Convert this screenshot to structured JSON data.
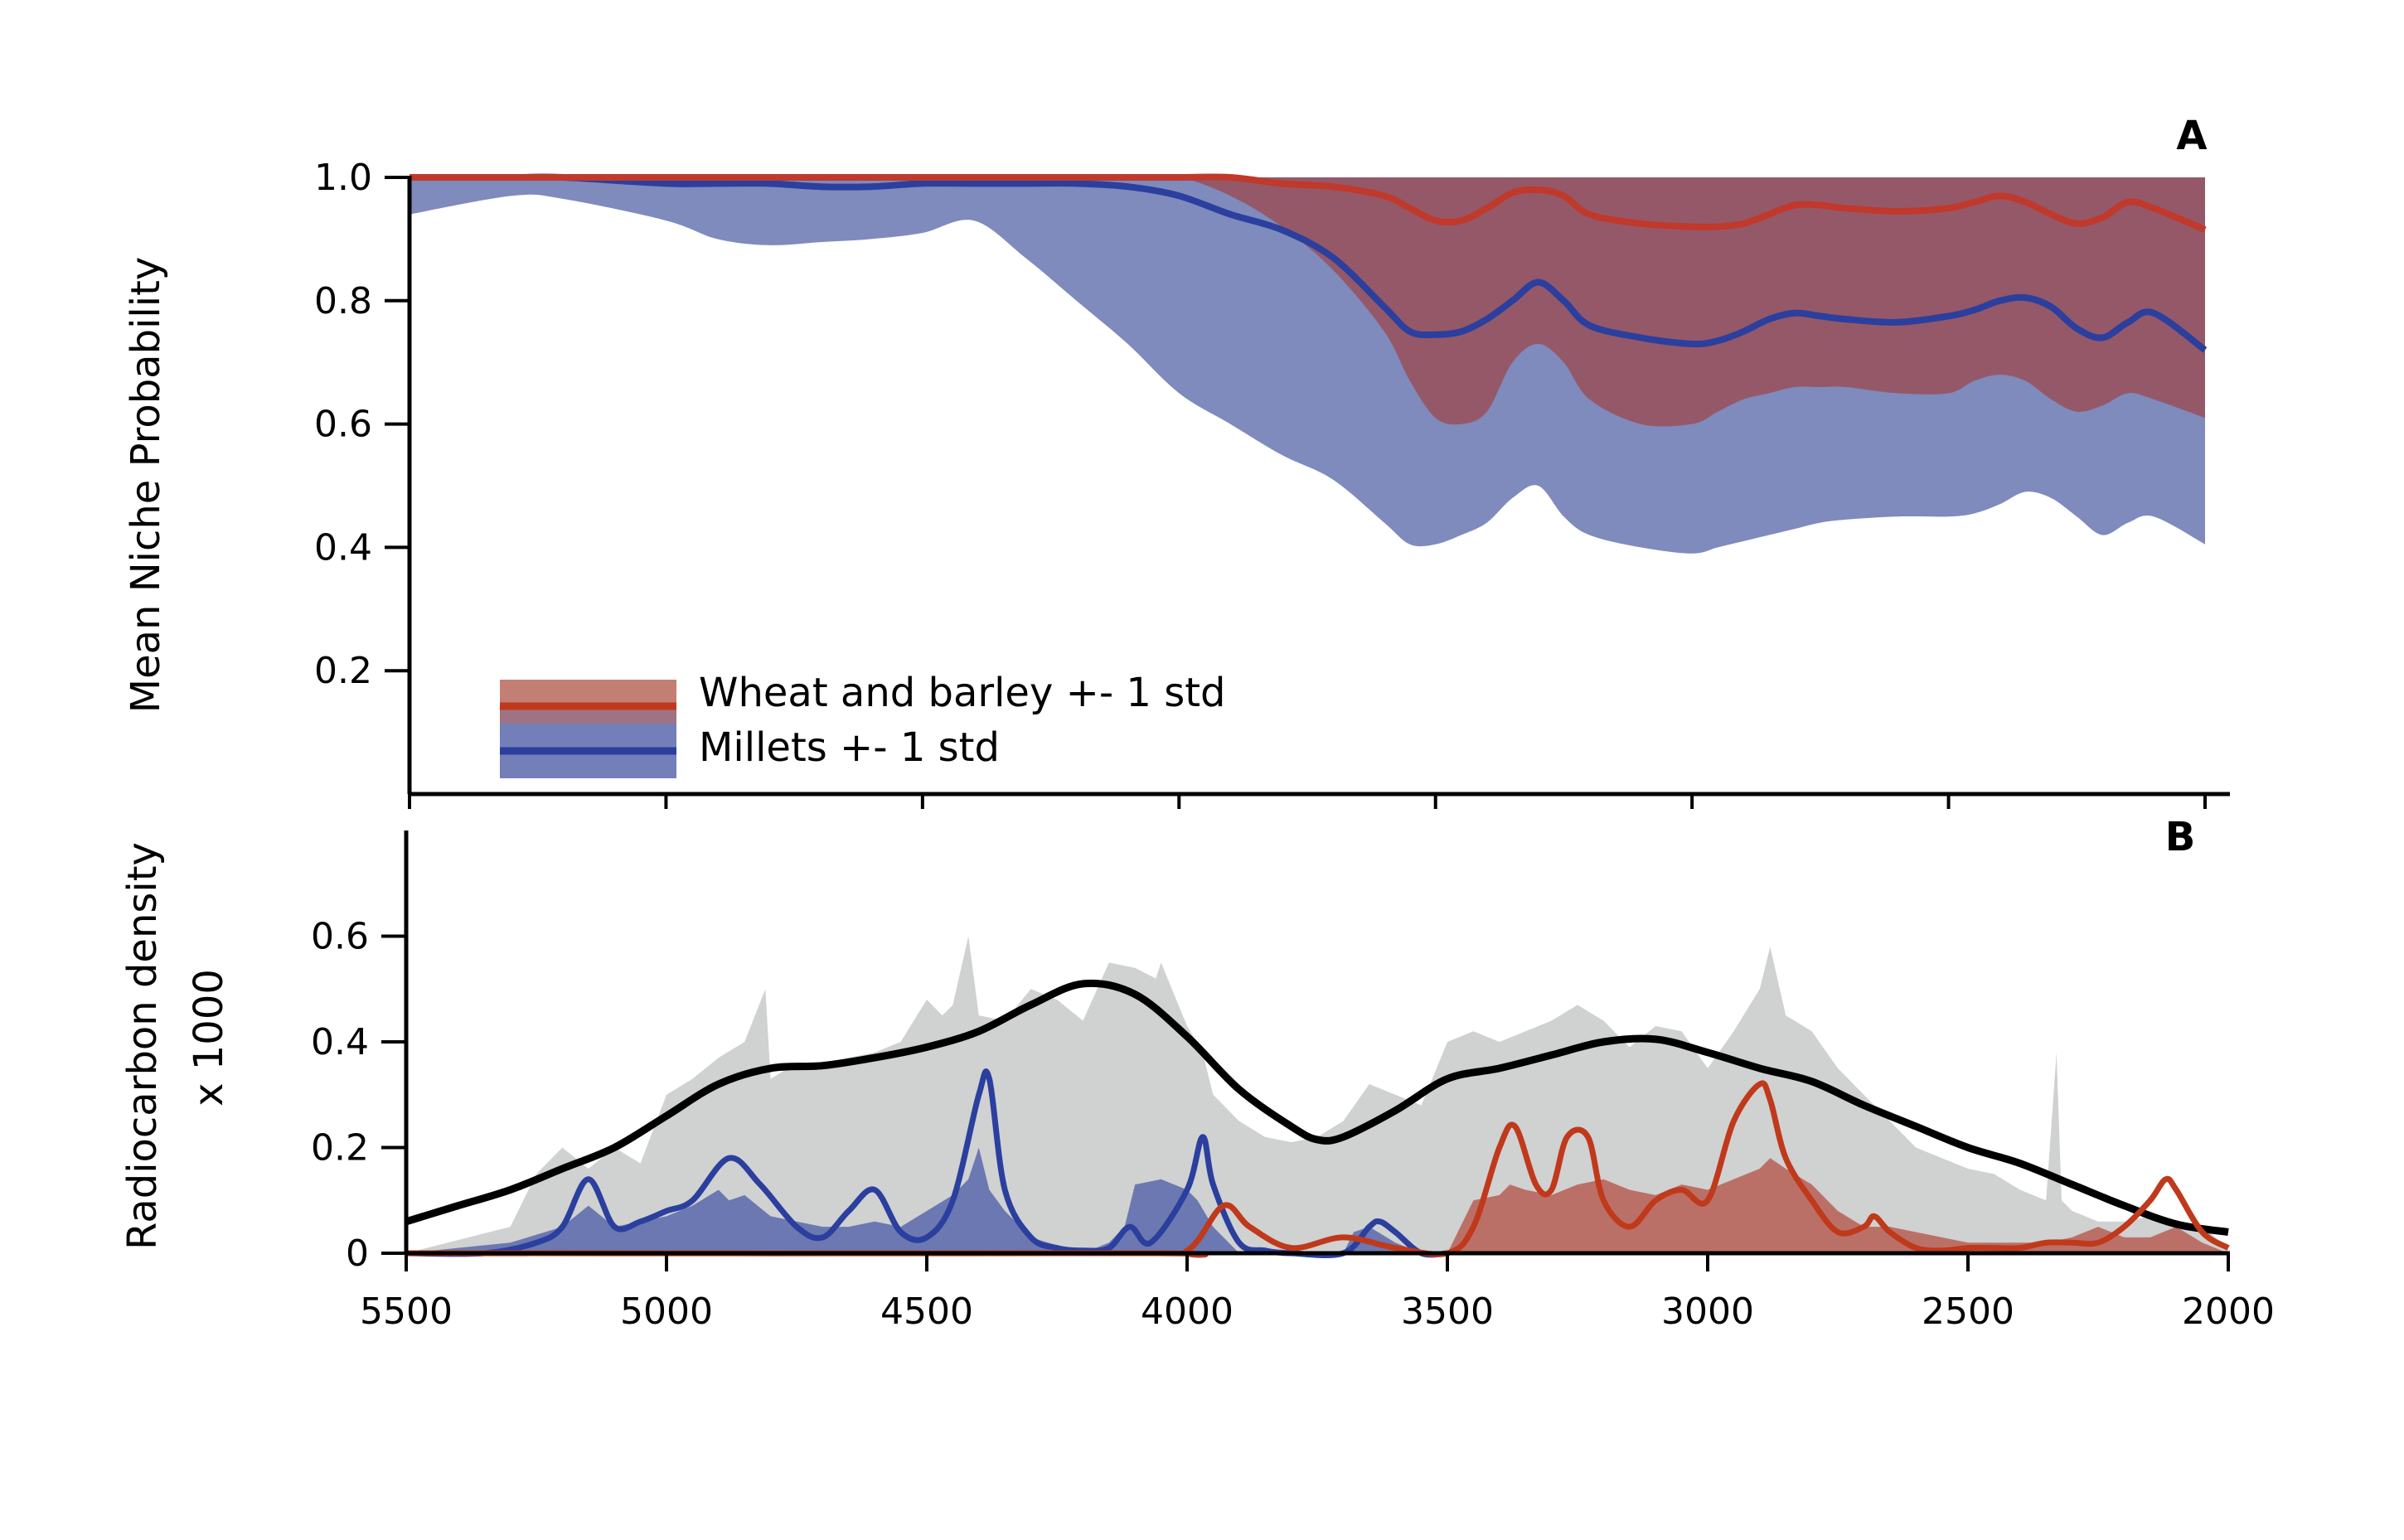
{
  "chart_data": [
    {
      "panel": "A",
      "type": "area",
      "ylabel": "Mean Niche Probability",
      "xlim": [
        5500,
        2000
      ],
      "ylim": [
        0,
        1.0
      ],
      "x_ticks": [
        5500,
        5000,
        4500,
        4000,
        3500,
        3000,
        2500,
        2000
      ],
      "y_ticks": [
        0.2,
        0.4,
        0.6,
        0.8,
        1.0
      ],
      "y_tick_labels": [
        "0.2",
        "0.4",
        "0.6",
        "0.8",
        "1.0"
      ],
      "x": [
        5500,
        5300,
        5200,
        5000,
        4900,
        4800,
        4700,
        4600,
        4500,
        4400,
        4300,
        4200,
        4100,
        4000,
        3900,
        3800,
        3700,
        3600,
        3550,
        3500,
        3450,
        3400,
        3350,
        3300,
        3250,
        3200,
        3100,
        3000,
        2950,
        2900,
        2850,
        2800,
        2750,
        2700,
        2600,
        2500,
        2450,
        2400,
        2350,
        2300,
        2250,
        2200,
        2150,
        2100,
        2000
      ],
      "series": [
        {
          "name": "Wheat and barley +- 1 std",
          "color": "#c0392b",
          "mean": [
            1.0,
            1.0,
            1.0,
            1.0,
            1.0,
            1.0,
            1.0,
            1.0,
            1.0,
            1.0,
            1.0,
            1.0,
            1.0,
            1.0,
            1.0,
            0.99,
            0.985,
            0.97,
            0.95,
            0.93,
            0.93,
            0.95,
            0.975,
            0.98,
            0.97,
            0.94,
            0.925,
            0.92,
            0.92,
            0.925,
            0.94,
            0.955,
            0.955,
            0.95,
            0.945,
            0.95,
            0.96,
            0.97,
            0.96,
            0.94,
            0.925,
            0.935,
            0.96,
            0.95,
            0.915
          ],
          "upper": [
            1.0,
            1.0,
            1.0,
            1.0,
            1.0,
            1.0,
            1.0,
            1.0,
            1.0,
            1.0,
            1.0,
            1.0,
            1.0,
            1.0,
            1.0,
            1.0,
            1.0,
            1.0,
            1.0,
            1.0,
            1.0,
            1.0,
            1.0,
            1.0,
            1.0,
            1.0,
            1.0,
            1.0,
            1.0,
            1.0,
            1.0,
            1.0,
            1.0,
            1.0,
            1.0,
            1.0,
            1.0,
            1.0,
            1.0,
            1.0,
            1.0,
            1.0,
            1.0,
            1.0,
            1.0
          ],
          "lower": [
            1.0,
            1.0,
            1.0,
            1.0,
            1.0,
            1.0,
            1.0,
            1.0,
            1.0,
            1.0,
            1.0,
            1.0,
            1.0,
            1.0,
            0.97,
            0.92,
            0.85,
            0.75,
            0.67,
            0.61,
            0.6,
            0.62,
            0.7,
            0.73,
            0.7,
            0.64,
            0.6,
            0.6,
            0.62,
            0.64,
            0.65,
            0.66,
            0.66,
            0.66,
            0.65,
            0.65,
            0.67,
            0.68,
            0.67,
            0.64,
            0.62,
            0.63,
            0.65,
            0.64,
            0.61
          ]
        },
        {
          "name": "Millets +- 1 std",
          "color": "#2b3f9e",
          "mean": [
            1.0,
            1.0,
            1.0,
            0.99,
            0.99,
            0.99,
            0.985,
            0.985,
            0.99,
            0.99,
            0.99,
            0.99,
            0.985,
            0.97,
            0.94,
            0.915,
            0.87,
            0.79,
            0.75,
            0.745,
            0.75,
            0.77,
            0.8,
            0.83,
            0.8,
            0.76,
            0.74,
            0.73,
            0.735,
            0.75,
            0.77,
            0.78,
            0.775,
            0.77,
            0.765,
            0.775,
            0.785,
            0.8,
            0.805,
            0.79,
            0.755,
            0.74,
            0.765,
            0.78,
            0.72
          ],
          "upper": [
            1.0,
            1.0,
            1.0,
            1.0,
            1.0,
            1.0,
            1.0,
            1.0,
            1.0,
            1.0,
            1.0,
            1.0,
            1.0,
            1.0,
            1.0,
            1.0,
            1.0,
            1.0,
            1.0,
            1.0,
            1.0,
            1.0,
            1.0,
            1.0,
            1.0,
            1.0,
            1.0,
            1.0,
            1.0,
            1.0,
            1.0,
            1.0,
            1.0,
            1.0,
            1.0,
            1.0,
            1.0,
            1.0,
            1.0,
            1.0,
            1.0,
            1.0,
            1.0,
            1.0,
            1.0
          ],
          "lower": [
            0.94,
            0.97,
            0.965,
            0.93,
            0.9,
            0.89,
            0.895,
            0.9,
            0.91,
            0.93,
            0.87,
            0.8,
            0.73,
            0.65,
            0.6,
            0.55,
            0.51,
            0.44,
            0.405,
            0.405,
            0.42,
            0.44,
            0.48,
            0.5,
            0.45,
            0.42,
            0.4,
            0.39,
            0.4,
            0.41,
            0.42,
            0.43,
            0.44,
            0.445,
            0.45,
            0.45,
            0.455,
            0.47,
            0.49,
            0.48,
            0.45,
            0.42,
            0.44,
            0.45,
            0.405
          ]
        }
      ],
      "legend": [
        "Wheat and barley +- 1 std",
        "Millets +- 1 std"
      ],
      "legend_position": "bottom-left",
      "panel_label": "A",
      "band_colors": {
        "wheat_band": "#a33a33",
        "millet_band": "#5b69ab",
        "overlap": "#8e5160"
      }
    },
    {
      "panel": "B",
      "type": "line",
      "ylabel_line1": "Radiocarbon density",
      "ylabel_line2": "x 1000",
      "xlim": [
        5500,
        2000
      ],
      "ylim": [
        0,
        0.8
      ],
      "x_ticks": [
        5500,
        5000,
        4500,
        4000,
        3500,
        3000,
        2500,
        2000
      ],
      "x_tick_labels": [
        "5500",
        "5000",
        "4500",
        "4000",
        "3500",
        "3000",
        "2500",
        "2000"
      ],
      "y_ticks": [
        0,
        0.2,
        0.4,
        0.6
      ],
      "y_tick_labels": [
        "0",
        "0.2",
        "0.4",
        "0.6"
      ],
      "total_envelope": {
        "x": [
          5500,
          5300,
          5250,
          5200,
          5150,
          5100,
          5050,
          5000,
          4950,
          4900,
          4850,
          4810,
          4800,
          4750,
          4700,
          4600,
          4550,
          4500,
          4470,
          4450,
          4420,
          4400,
          4350,
          4300,
          4250,
          4200,
          4150,
          4100,
          4060,
          4050,
          4000,
          3970,
          3950,
          3900,
          3850,
          3800,
          3750,
          3700,
          3650,
          3600,
          3550,
          3500,
          3450,
          3400,
          3350,
          3300,
          3250,
          3200,
          3150,
          3100,
          3050,
          3000,
          2950,
          2900,
          2880,
          2850,
          2800,
          2750,
          2700,
          2650,
          2600,
          2550,
          2500,
          2450,
          2400,
          2350,
          2330,
          2320,
          2300,
          2250,
          2200,
          2150,
          2100,
          2050,
          2000
        ],
        "y": [
          0.0,
          0.05,
          0.15,
          0.2,
          0.16,
          0.2,
          0.17,
          0.3,
          0.33,
          0.37,
          0.4,
          0.5,
          0.33,
          0.36,
          0.36,
          0.38,
          0.4,
          0.48,
          0.45,
          0.47,
          0.6,
          0.45,
          0.44,
          0.5,
          0.48,
          0.44,
          0.55,
          0.54,
          0.52,
          0.55,
          0.43,
          0.38,
          0.3,
          0.25,
          0.22,
          0.21,
          0.22,
          0.25,
          0.32,
          0.3,
          0.28,
          0.4,
          0.42,
          0.4,
          0.42,
          0.44,
          0.47,
          0.44,
          0.39,
          0.43,
          0.42,
          0.35,
          0.42,
          0.5,
          0.58,
          0.45,
          0.42,
          0.35,
          0.3,
          0.25,
          0.2,
          0.18,
          0.16,
          0.15,
          0.12,
          0.1,
          0.38,
          0.1,
          0.08,
          0.06,
          0.06,
          0.07,
          0.06,
          0.05,
          0.01
        ]
      },
      "millet_fill": {
        "x": [
          5500,
          5300,
          5200,
          5150,
          5100,
          5050,
          5000,
          4950,
          4900,
          4880,
          4850,
          4800,
          4750,
          4700,
          4650,
          4600,
          4550,
          4500,
          4450,
          4420,
          4400,
          4380,
          4350,
          4300,
          4200,
          4150,
          4120,
          4100,
          4050,
          4000,
          3980,
          3950,
          3900,
          3850,
          3800,
          3700,
          3680,
          3650,
          3600,
          3550
        ],
        "y": [
          0.0,
          0.02,
          0.05,
          0.09,
          0.05,
          0.06,
          0.07,
          0.09,
          0.12,
          0.1,
          0.11,
          0.07,
          0.06,
          0.05,
          0.05,
          0.06,
          0.05,
          0.08,
          0.11,
          0.14,
          0.2,
          0.12,
          0.08,
          0.03,
          0.0,
          0.02,
          0.05,
          0.13,
          0.14,
          0.12,
          0.1,
          0.05,
          0.0,
          0.0,
          0.0,
          0.0,
          0.04,
          0.05,
          0.02,
          0.0
        ]
      },
      "wheat_fill": {
        "x": [
          3500,
          3450,
          3400,
          3380,
          3350,
          3300,
          3250,
          3200,
          3150,
          3100,
          3050,
          3000,
          2950,
          2900,
          2880,
          2850,
          2800,
          2750,
          2700,
          2650,
          2600,
          2550,
          2500,
          2450,
          2400,
          2350,
          2300,
          2250,
          2200,
          2150,
          2100,
          2050,
          2000
        ],
        "y": [
          0.0,
          0.1,
          0.11,
          0.13,
          0.12,
          0.11,
          0.13,
          0.14,
          0.12,
          0.11,
          0.13,
          0.12,
          0.14,
          0.16,
          0.18,
          0.16,
          0.13,
          0.08,
          0.05,
          0.05,
          0.04,
          0.03,
          0.02,
          0.02,
          0.02,
          0.02,
          0.03,
          0.05,
          0.03,
          0.03,
          0.05,
          0.02,
          0.0
        ]
      },
      "series": [
        {
          "role": "total density",
          "color": "#000000",
          "x": [
            5500,
            5400,
            5300,
            5200,
            5100,
            5000,
            4900,
            4800,
            4700,
            4600,
            4500,
            4400,
            4300,
            4200,
            4100,
            4000,
            3900,
            3800,
            3750,
            3700,
            3600,
            3500,
            3400,
            3300,
            3200,
            3100,
            3000,
            2900,
            2800,
            2700,
            2600,
            2500,
            2400,
            2300,
            2200,
            2100,
            2000
          ],
          "y": [
            0.06,
            0.09,
            0.12,
            0.16,
            0.2,
            0.26,
            0.32,
            0.35,
            0.355,
            0.37,
            0.39,
            0.42,
            0.47,
            0.51,
            0.49,
            0.41,
            0.31,
            0.24,
            0.215,
            0.22,
            0.27,
            0.33,
            0.35,
            0.375,
            0.4,
            0.405,
            0.38,
            0.35,
            0.325,
            0.28,
            0.24,
            0.2,
            0.17,
            0.13,
            0.09,
            0.055,
            0.04
          ]
        },
        {
          "role": "millets",
          "color": "#2b3f9e",
          "x": [
            5500,
            5350,
            5250,
            5200,
            5150,
            5100,
            5050,
            5000,
            4950,
            4880,
            4820,
            4750,
            4700,
            4650,
            4600,
            4550,
            4500,
            4450,
            4400,
            4380,
            4350,
            4300,
            4250,
            4200,
            4150,
            4110,
            4070,
            4000,
            3970,
            3950,
            3900,
            3850,
            3800,
            3700,
            3650,
            3630,
            3600,
            3550,
            3500
          ],
          "y": [
            0.0,
            0.0,
            0.02,
            0.05,
            0.14,
            0.05,
            0.06,
            0.08,
            0.1,
            0.18,
            0.13,
            0.05,
            0.03,
            0.08,
            0.12,
            0.04,
            0.03,
            0.1,
            0.3,
            0.33,
            0.12,
            0.03,
            0.01,
            0.005,
            0.01,
            0.05,
            0.02,
            0.12,
            0.22,
            0.13,
            0.02,
            0.005,
            0.0,
            0.0,
            0.05,
            0.06,
            0.04,
            0.0,
            0.0
          ]
        },
        {
          "role": "wheat and barley",
          "color": "#c0391b",
          "x": [
            5500,
            4100,
            4000,
            3930,
            3880,
            3800,
            3700,
            3600,
            3500,
            3450,
            3400,
            3370,
            3330,
            3300,
            3270,
            3230,
            3200,
            3150,
            3100,
            3050,
            3000,
            2950,
            2900,
            2880,
            2850,
            2800,
            2750,
            2700,
            2680,
            2650,
            2600,
            2550,
            2500,
            2450,
            2400,
            2350,
            2300,
            2250,
            2200,
            2150,
            2120,
            2100,
            2050,
            2000
          ],
          "y": [
            0.0,
            0.0,
            0.005,
            0.09,
            0.05,
            0.01,
            0.03,
            0.01,
            0.0,
            0.05,
            0.2,
            0.24,
            0.13,
            0.12,
            0.22,
            0.22,
            0.1,
            0.05,
            0.1,
            0.12,
            0.1,
            0.25,
            0.32,
            0.29,
            0.18,
            0.1,
            0.04,
            0.05,
            0.07,
            0.04,
            0.01,
            0.005,
            0.01,
            0.01,
            0.01,
            0.02,
            0.02,
            0.02,
            0.05,
            0.1,
            0.14,
            0.12,
            0.04,
            0.01
          ]
        }
      ],
      "panel_label": "B",
      "envelope_color": "#d0d1d1",
      "millet_fill_color": "#5b69ab",
      "wheat_fill_color": "#b5584c"
    }
  ]
}
